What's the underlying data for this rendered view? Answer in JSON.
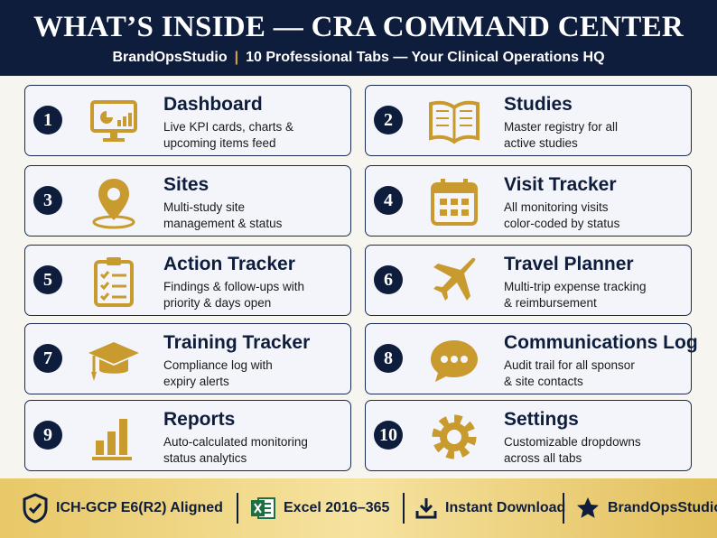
{
  "header": {
    "title": "WHAT’S INSIDE — CRA COMMAND CENTER",
    "brand": "BrandOpsStudio",
    "subtitle": "10 Professional Tabs — Your Clinical Operations HQ"
  },
  "tabs": [
    {
      "number": 1,
      "title": "Dashboard",
      "lines": [
        "Live KPI cards, charts &",
        "upcoming items feed"
      ]
    },
    {
      "number": 2,
      "title": "Studies",
      "lines": [
        "Master registry for all",
        "active studies"
      ]
    },
    {
      "number": 3,
      "title": "Sites",
      "lines": [
        "Multi-study site",
        "management & status"
      ]
    },
    {
      "number": 4,
      "title": "Visit Tracker",
      "lines": [
        "All monitoring visits",
        "color-coded by status"
      ]
    },
    {
      "number": 5,
      "title": "Action Tracker",
      "lines": [
        "Findings & follow-ups with",
        "priority & days open"
      ]
    },
    {
      "number": 6,
      "title": "Travel Planner",
      "lines": [
        "Multi-trip expense tracking",
        "& reimbursement"
      ]
    },
    {
      "number": 7,
      "title": "Training Tracker",
      "lines": [
        "Compliance log with",
        "expiry alerts"
      ]
    },
    {
      "number": 8,
      "title": "Communications Log",
      "lines": [
        "Audit trail for all sponsor",
        "& site contacts"
      ]
    },
    {
      "number": 9,
      "title": "Reports",
      "lines": [
        "Auto-calculated monitoring",
        "status analytics"
      ]
    },
    {
      "number": 10,
      "title": "Settings",
      "lines": [
        "Customizable dropdowns",
        "across all tabs"
      ]
    }
  ],
  "footer": {
    "items": [
      "ICH-GCP E6(R2) Aligned",
      "Excel 2016–365",
      "Instant Download",
      "BrandOpsStudio"
    ]
  }
}
